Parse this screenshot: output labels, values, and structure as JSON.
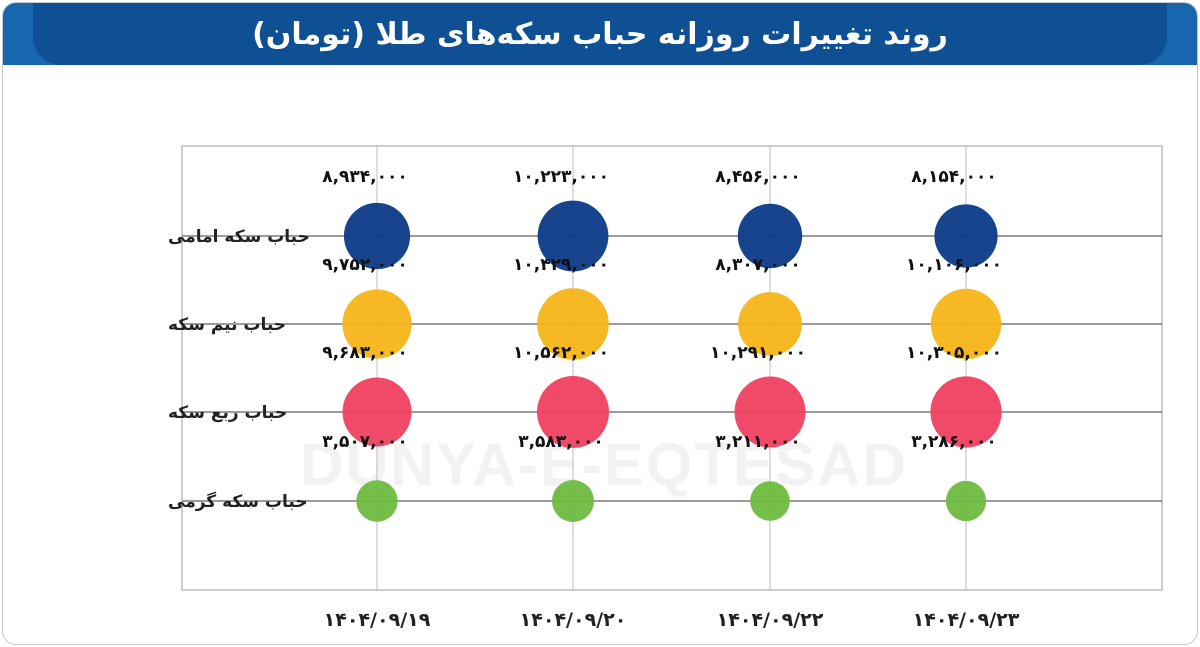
{
  "title": "روند تغییرات روزانه حباب سکه‌های طلا (تومان)",
  "watermark": "DUNYA-E-EQTESAD",
  "colors": {
    "header_bg": "#1766ae",
    "title_bg": "#0f4f93",
    "grid": "#9e9e9e"
  },
  "chart_data": {
    "type": "scatter",
    "title": "روند تغییرات روزانه حباب سکه‌های طلا (تومان)",
    "x_categories": [
      "۱۴۰۴/۰۹/۱۹",
      "۱۴۰۴/۰۹/۲۰",
      "۱۴۰۴/۰۹/۲۲",
      "۱۴۰۴/۰۹/۲۳"
    ],
    "y_categories": [
      "حباب سکه امامی",
      "حباب نیم سکه",
      "حباب ربع سکه",
      "حباب سکه گرمی"
    ],
    "size_encodes": "value",
    "grid": true,
    "series": [
      {
        "name": "حباب سکه امامی",
        "color": "#0b3a86",
        "values": [
          8934000,
          10223000,
          8456000,
          8154000
        ],
        "labels": [
          "۸,۹۳۴,۰۰۰",
          "۱۰,۲۲۳,۰۰۰",
          "۸,۴۵۶,۰۰۰",
          "۸,۱۵۴,۰۰۰"
        ]
      },
      {
        "name": "حباب نیم سکه",
        "color": "#f6b417",
        "values": [
          9752000,
          10429000,
          8307000,
          10106000
        ],
        "labels": [
          "۹,۷۵۲,۰۰۰",
          "۱۰,۴۲۹,۰۰۰",
          "۸,۳۰۷,۰۰۰",
          "۱۰,۱۰۶,۰۰۰"
        ]
      },
      {
        "name": "حباب ربع سکه",
        "color": "#ef4060",
        "values": [
          9683000,
          10562000,
          10291000,
          10305000
        ],
        "labels": [
          "۹,۶۸۳,۰۰۰",
          "۱۰,۵۶۲,۰۰۰",
          "۱۰,۲۹۱,۰۰۰",
          "۱۰,۳۰۵,۰۰۰"
        ]
      },
      {
        "name": "حباب سکه گرمی",
        "color": "#6dbb3f",
        "values": [
          3507000,
          3583000,
          3211000,
          3286000
        ],
        "labels": [
          "۳,۵۰۷,۰۰۰",
          "۳,۵۸۳,۰۰۰",
          "۳,۲۱۱,۰۰۰",
          "۳,۲۸۶,۰۰۰"
        ]
      }
    ]
  }
}
